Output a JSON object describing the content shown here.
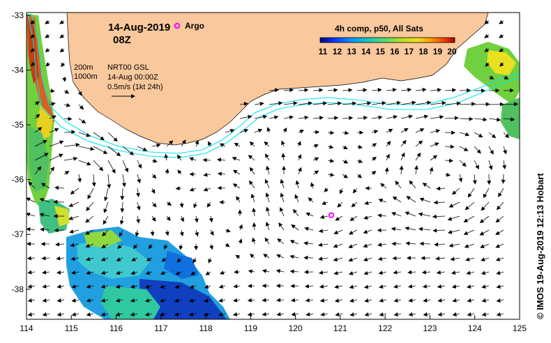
{
  "map": {
    "date": "14-Aug-2019",
    "time": "08Z",
    "argo_label": "Argo",
    "colorbar_title": "4h comp, p50, All Sats",
    "colorbar_ticks": [
      "11",
      "12",
      "13",
      "14",
      "15",
      "16",
      "17",
      "18",
      "19",
      "20"
    ],
    "legend_lines": [
      "200m",
      "1000m"
    ],
    "info_lines": [
      "NRT00 GSL",
      "14-Aug 00:00Z",
      "0.5m/s (1kt 24h)"
    ],
    "credit": "© IMOS 19-Aug-2019 12:13 Hobart",
    "x_ticks": [
      "114",
      "115",
      "116",
      "117",
      "118",
      "119",
      "120",
      "121",
      "122",
      "123",
      "124",
      "125"
    ],
    "y_ticks": [
      "-33",
      "-34",
      "-35",
      "-36",
      "-37",
      "-38"
    ],
    "argo_float": {
      "lon": 120.8,
      "lat": -36.65
    }
  },
  "colors": {
    "land": "#f9c89c",
    "isobath": "#00e5ee",
    "argo": "#ff00ff",
    "colorbar": [
      "#00008f",
      "#0040ff",
      "#00a0ff",
      "#20d0a0",
      "#60e060",
      "#b0e020",
      "#f0e020",
      "#ffa000",
      "#ff4000",
      "#b00000"
    ]
  }
}
